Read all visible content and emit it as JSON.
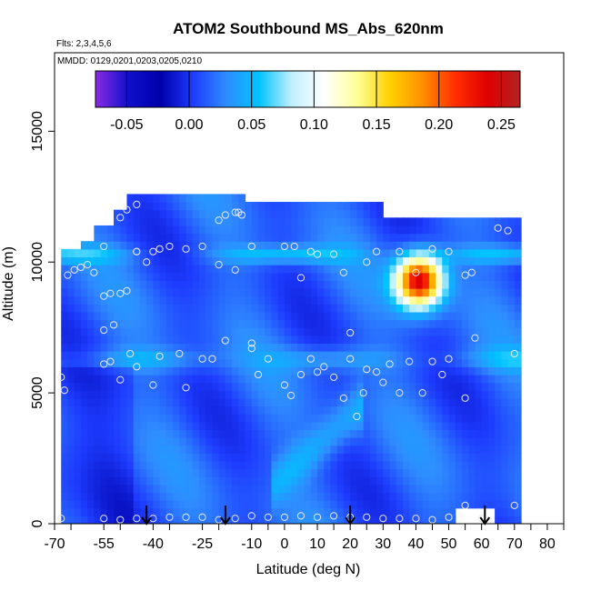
{
  "chart_data": {
    "type": "heatmap",
    "title": "ATOM2 Southbound MS_Abs_620nm",
    "flights_note": "Flts: 2,3,4,5,6",
    "dates_note": "MMDD: 0129,0201,0203,0205,0210",
    "xlabel": "Latitude (deg N)",
    "ylabel": "Altitude (m)",
    "xlim": [
      -70,
      85
    ],
    "ylim": [
      0,
      18000
    ],
    "x_ticks": [
      "-70",
      "-65",
      "-55",
      "-50",
      "-40",
      "-35",
      "-25",
      "-20",
      "-10",
      "-5",
      "0",
      "5",
      "10",
      "15",
      "20",
      "25",
      "30",
      "35",
      "40",
      "45",
      "50",
      "55",
      "60",
      "65",
      "70",
      "75",
      "80",
      "85"
    ],
    "x_tick_labels": [
      "-70",
      "-55",
      "-40",
      "-25",
      "-10",
      "0",
      "10",
      "20",
      "30",
      "40",
      "50",
      "60",
      "70",
      "80"
    ],
    "y_ticks": [
      "0",
      "5000",
      "10000",
      "15000"
    ],
    "colorbar": {
      "range": [
        -0.075,
        0.265
      ],
      "ticks": [
        "-0.05",
        "0.00",
        "0.05",
        "0.10",
        "0.15",
        "0.20",
        "0.25"
      ],
      "colors": [
        "#8a2be2",
        "#1010cc",
        "#0000aa",
        "#1e3cff",
        "#2f8cff",
        "#00c3ff",
        "#bfefff",
        "#ffffff",
        "#ffff99",
        "#ffd200",
        "#ff9000",
        "#ff3000",
        "#e00000",
        "#b22222"
      ]
    },
    "arrow_latitudes": [
      -42,
      -18,
      20,
      61
    ],
    "series": [
      {
        "values": [
          [
            -68,
            200
          ],
          [
            -55,
            200
          ],
          [
            -50,
            150
          ],
          [
            -45,
            200
          ],
          [
            -40,
            200
          ],
          [
            -35,
            250
          ],
          [
            -30,
            250
          ],
          [
            -25,
            250
          ],
          [
            -20,
            150
          ],
          [
            -15,
            200
          ],
          [
            -10,
            300
          ],
          [
            -5,
            250
          ],
          [
            0,
            250
          ],
          [
            5,
            300
          ],
          [
            10,
            250
          ],
          [
            15,
            300
          ],
          [
            20,
            250
          ],
          [
            25,
            250
          ],
          [
            30,
            200
          ],
          [
            35,
            200
          ],
          [
            40,
            200
          ],
          [
            45,
            150
          ],
          [
            50,
            250
          ],
          [
            55,
            700
          ],
          [
            60,
            200
          ],
          [
            70,
            700
          ],
          [
            -68,
            5600
          ],
          [
            -67,
            5100
          ],
          [
            -55,
            6100
          ],
          [
            -53,
            6200
          ],
          [
            -50,
            5500
          ],
          [
            -47,
            6500
          ],
          [
            -45,
            6000
          ],
          [
            -40,
            5300
          ],
          [
            -38,
            6400
          ],
          [
            -32,
            6500
          ],
          [
            -30,
            5200
          ],
          [
            -25,
            6300
          ],
          [
            -22,
            6300
          ],
          [
            -10,
            6900
          ],
          [
            -8,
            5700
          ],
          [
            -5,
            6300
          ],
          [
            0,
            5300
          ],
          [
            2,
            4900
          ],
          [
            5,
            5700
          ],
          [
            8,
            6300
          ],
          [
            10,
            5800
          ],
          [
            12,
            6000
          ],
          [
            15,
            5600
          ],
          [
            18,
            4800
          ],
          [
            20,
            6300
          ],
          [
            22,
            4100
          ],
          [
            24,
            5000
          ],
          [
            25,
            5900
          ],
          [
            28,
            5800
          ],
          [
            30,
            5400
          ],
          [
            32,
            6100
          ],
          [
            35,
            5000
          ],
          [
            38,
            6200
          ],
          [
            42,
            5000
          ],
          [
            45,
            6200
          ],
          [
            48,
            5700
          ],
          [
            50,
            6300
          ],
          [
            55,
            4800
          ],
          [
            58,
            7100
          ],
          [
            70,
            6500
          ],
          [
            -55,
            7400
          ],
          [
            -52,
            7600
          ],
          [
            -18,
            7000
          ],
          [
            -10,
            6700
          ],
          [
            20,
            7300
          ],
          [
            -66,
            9500
          ],
          [
            -64,
            9700
          ],
          [
            -62,
            9800
          ],
          [
            -60,
            9900
          ],
          [
            -58,
            9600
          ],
          [
            -55,
            8700
          ],
          [
            -53,
            8800
          ],
          [
            -50,
            8800
          ],
          [
            -48,
            8900
          ],
          [
            -45,
            10400
          ],
          [
            -42,
            10000
          ],
          [
            -30,
            10500
          ],
          [
            -20,
            9900
          ],
          [
            -15,
            9700
          ],
          [
            0,
            10600
          ],
          [
            3,
            10600
          ],
          [
            5,
            9400
          ],
          [
            8,
            10400
          ],
          [
            10,
            10300
          ],
          [
            15,
            10300
          ],
          [
            18,
            9600
          ],
          [
            25,
            10000
          ],
          [
            28,
            10400
          ],
          [
            35,
            10400
          ],
          [
            40,
            9600
          ],
          [
            45,
            10500
          ],
          [
            50,
            10400
          ],
          [
            55,
            9500
          ],
          [
            57,
            9600
          ],
          [
            65,
            11300
          ],
          [
            68,
            11200
          ],
          [
            -55,
            10600
          ],
          [
            -45,
            10400
          ],
          [
            -40,
            10400
          ],
          [
            -38,
            10500
          ],
          [
            -35,
            10600
          ],
          [
            -25,
            10600
          ],
          [
            -20,
            11600
          ],
          [
            -18,
            11800
          ],
          [
            -15,
            11900
          ],
          [
            -14,
            11900
          ],
          [
            -13,
            11800
          ],
          [
            -10,
            10600
          ],
          [
            -50,
            11700
          ],
          [
            -48,
            12000
          ],
          [
            -45,
            12200
          ]
        ]
      }
    ]
  }
}
